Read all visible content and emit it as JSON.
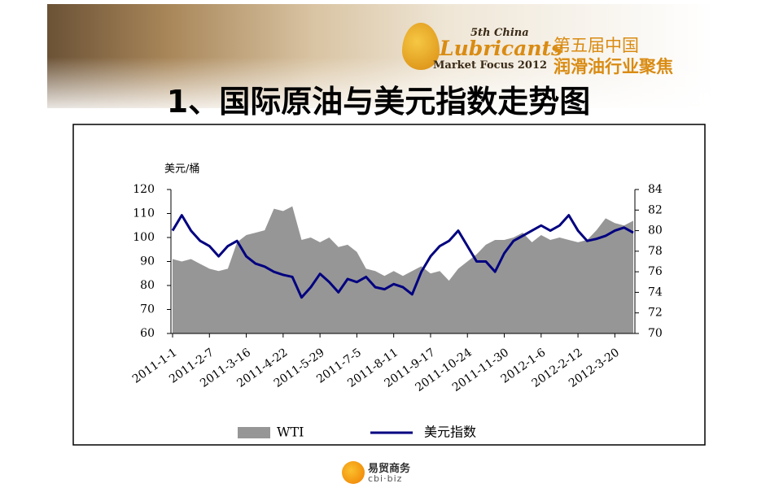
{
  "header": {
    "logo_edition": "5th China",
    "logo_name": "Lubricants",
    "logo_sub": "Market Focus 2012",
    "cn_line1": "第五届中国",
    "cn_line2": "润滑油行业聚焦"
  },
  "title": "1、国际原油与美元指数走势图",
  "chart_data": {
    "type": "combo",
    "y_label": "美元/桶",
    "categories": [
      "2011-1-1",
      null,
      null,
      null,
      "2011-2-7",
      null,
      null,
      null,
      "2011-3-16",
      null,
      null,
      null,
      "2011-4-22",
      null,
      null,
      null,
      "2011-5-29",
      null,
      null,
      null,
      "2011-7-5",
      null,
      null,
      null,
      "2011-8-11",
      null,
      null,
      null,
      "2011-9-17",
      null,
      null,
      null,
      "2011-10-24",
      null,
      null,
      null,
      "2011-11-30",
      null,
      null,
      null,
      "2012-1-6",
      null,
      null,
      null,
      "2012-2-12",
      null,
      null,
      null,
      "2012-3-20",
      null,
      null
    ],
    "series": [
      {
        "name": "WTI",
        "type": "area",
        "color": "#969696",
        "values": [
          91,
          90,
          91,
          89,
          87,
          86,
          87,
          98,
          101,
          102,
          103,
          112,
          111,
          113,
          99,
          100,
          98,
          100,
          96,
          97,
          94,
          87,
          86,
          84,
          86,
          84,
          86,
          88,
          85,
          86,
          82,
          87,
          90,
          93,
          97,
          99,
          99,
          100,
          102,
          98,
          101,
          99,
          100,
          99,
          98,
          99,
          103,
          108,
          106,
          105,
          107
        ]
      },
      {
        "name": "美元指数",
        "type": "line",
        "axis": "y2",
        "color": "#000080",
        "values": [
          80,
          81.5,
          80,
          79,
          78.5,
          77.5,
          78.5,
          79,
          77.5,
          76.8,
          76.5,
          76,
          75.7,
          75.5,
          73.5,
          74.5,
          75.8,
          75,
          74,
          75.3,
          75,
          75.5,
          74.5,
          74.3,
          74.8,
          74.5,
          73.8,
          76,
          77.5,
          78.5,
          79,
          80,
          78.5,
          77,
          77,
          76,
          77.8,
          79,
          79.5,
          80,
          80.5,
          80,
          80.5,
          81.5,
          80,
          79,
          79.2,
          79.5,
          80,
          80.3,
          79.8
        ]
      }
    ],
    "ylim": [
      60,
      120
    ],
    "yticks": [
      60,
      70,
      80,
      90,
      100,
      110,
      120
    ],
    "y2lim": [
      70,
      84
    ],
    "y2ticks": [
      70,
      72,
      74,
      76,
      78,
      80,
      82,
      84
    ]
  },
  "footer": {
    "brand": "易贸商务",
    "domain": "cbi·biz"
  }
}
